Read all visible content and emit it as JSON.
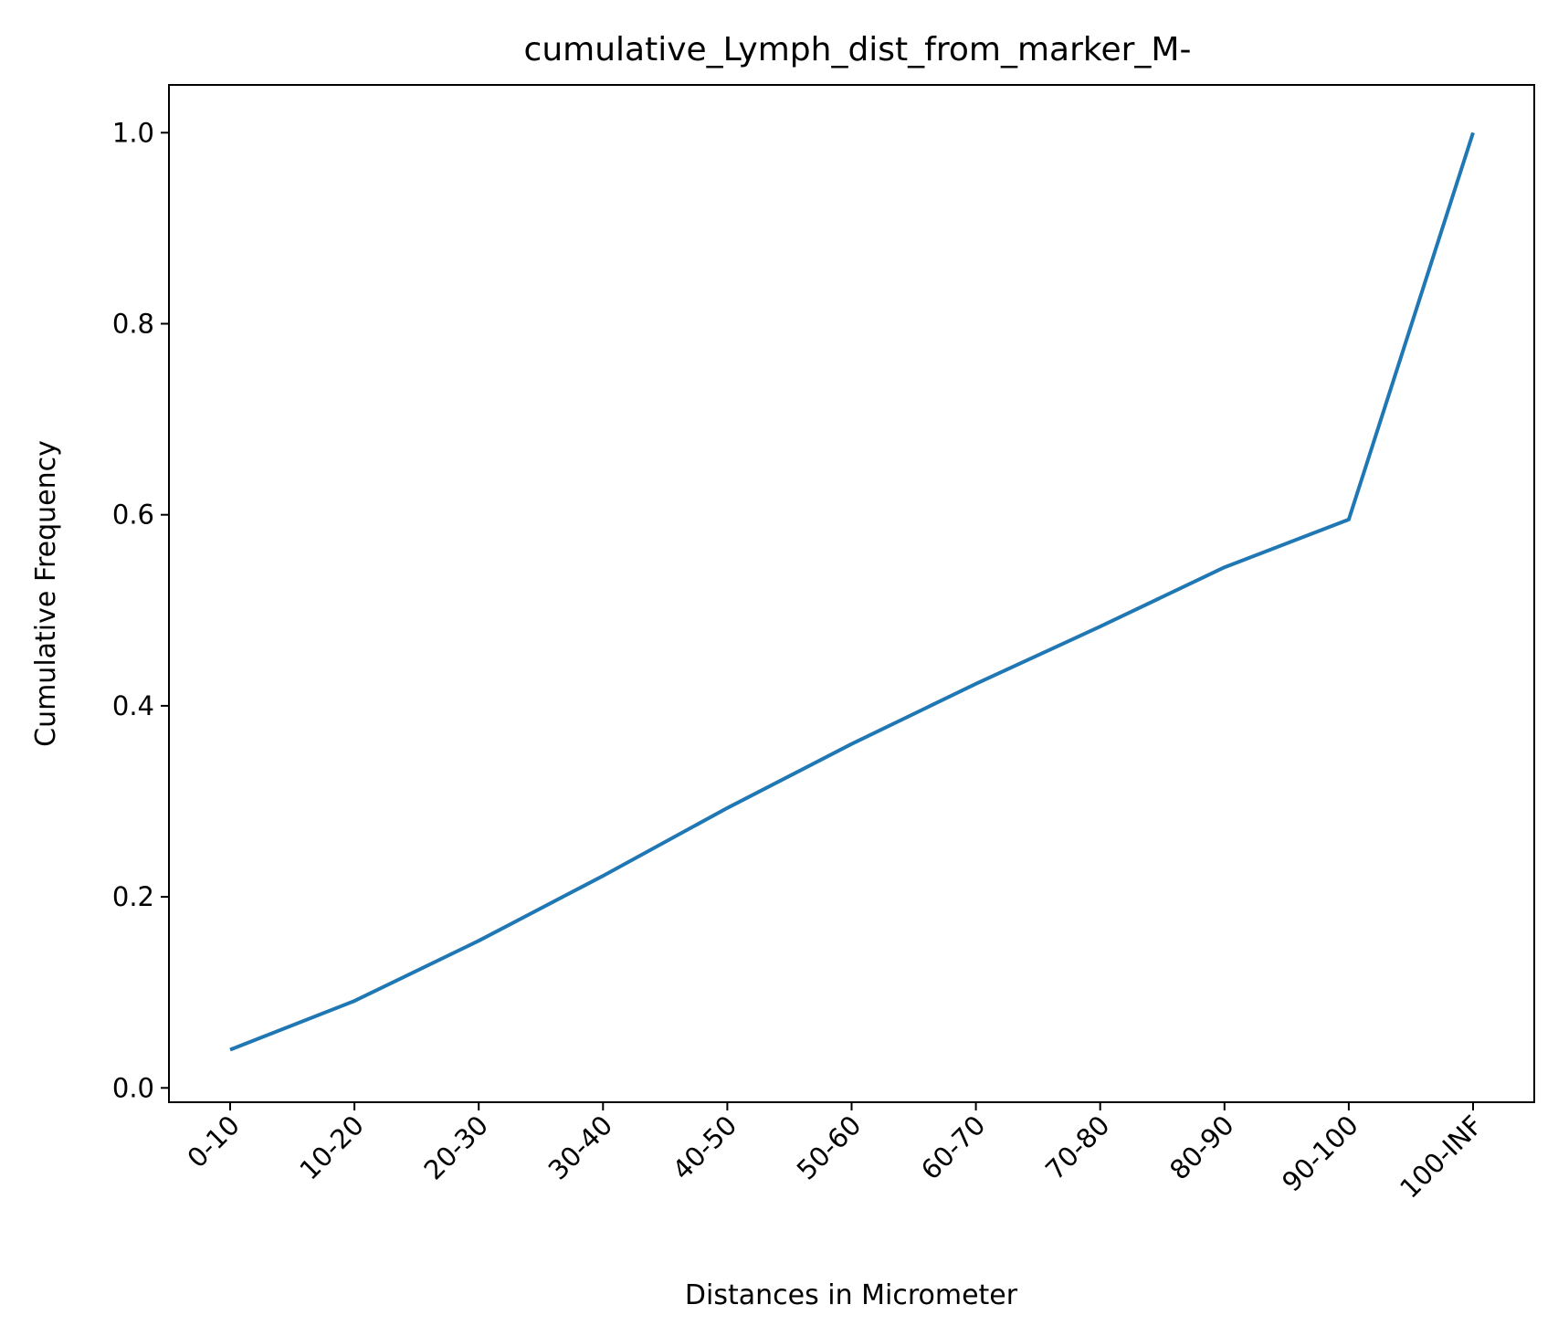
{
  "chart_data": {
    "type": "line",
    "title": "cumulative_Lymph_dist_from_marker_M-",
    "xlabel": "Distances in Micrometer",
    "ylabel": "Cumulative Frequency",
    "categories": [
      "0-10",
      "10-20",
      "20-30",
      "30-40",
      "40-50",
      "50-60",
      "60-70",
      "70-80",
      "80-90",
      "90-100",
      "100-INF"
    ],
    "series": [
      {
        "values": [
          0.04,
          0.091,
          0.154,
          0.222,
          0.293,
          0.36,
          0.423,
          0.483,
          0.545,
          0.595,
          1.0
        ],
        "color": "#1f77b4"
      }
    ],
    "ylim": [
      -0.015,
      1.05
    ],
    "yticks": [
      0.0,
      0.2,
      0.4,
      0.6,
      0.8,
      1.0
    ],
    "ytick_labels": [
      "0.0",
      "0.2",
      "0.4",
      "0.6",
      "0.8",
      "1.0"
    ],
    "grid": false,
    "legend": "none"
  }
}
